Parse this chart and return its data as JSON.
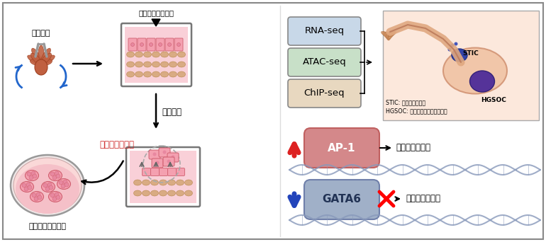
{
  "background_color": "#ffffff",
  "border_color": "#888888",
  "fig_width": 7.7,
  "fig_height": 3.42,
  "dpi": 100,
  "texts": {
    "top_left_label": "卵管採出",
    "top_cell_label": "卵管分泌上皮細胞",
    "middle_label": "単離培養",
    "cancer_gene_label": "がん遣伝子導入",
    "bottom_left_label": "発がんモデル細胞",
    "seq_labels": [
      "RNA-seq",
      "ATAC-seq",
      "ChIP-seq"
    ],
    "stic_label": "STIC",
    "hgsoc_label": "HGSOC",
    "caption1": "STIC: 卵管上皮内がん",
    "caption2": "HGSOC: 高異型度漿液性卵巣がん",
    "ap1_label": "AP-1",
    "gata6_label": "GATA6",
    "mesenchymal_label": "間葉系マーカー",
    "epithelial_label": "上皮系マーカー"
  },
  "colors": {
    "cell_pink": "#f4a0b0",
    "cell_light_pink": "#f9d0d8",
    "cell_tan": "#d4a574",
    "seq_box_colors": [
      "#c8d8e8",
      "#c8e0c8",
      "#e8d8c0"
    ],
    "arrow_red": "#dd2222",
    "arrow_blue": "#2244bb",
    "ap1_color": "#d4888a",
    "gata6_color": "#a0b0c8",
    "dna_color": "#8899bb",
    "text_red": "#cc2222",
    "fimb_color": "#c06040",
    "fimb_edge": "#a04020"
  }
}
